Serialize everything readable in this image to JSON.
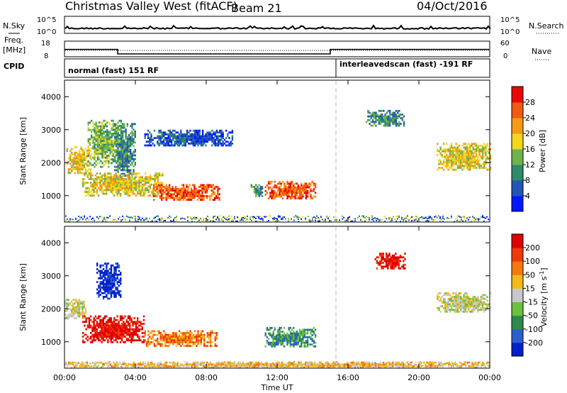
{
  "header": {
    "station": "Christmas Valley West (fitACF)",
    "beam": "Beam 21",
    "date": "04/Oct/2016"
  },
  "status_panels": {
    "nsky_label": "N.Sky",
    "nsearch_label": "N.Search",
    "noise_ticks_left": [
      "10^5",
      "10^0"
    ],
    "noise_ticks_right": [
      "10^5",
      "10^0"
    ],
    "freq_label_1": "Freq.",
    "freq_label_2": "[MHz]",
    "freq_ticks": [
      "18",
      "8"
    ],
    "nave_label": "Nave",
    "nave_ticks": [
      "60",
      "0"
    ],
    "cpid_label": "CPID",
    "cpid_segments": [
      {
        "label": "normal (fast) 151 RF",
        "start_hour": 0
      },
      {
        "label": "interleavedscan (fast) -191 RF",
        "start_hour": 15
      }
    ],
    "freq_steps": [
      {
        "hour": 0,
        "mhz": 14.5
      },
      {
        "hour": 3,
        "mhz": 10.5
      },
      {
        "hour": 15,
        "mhz": 14.5
      },
      {
        "hour": 24,
        "mhz": 14.5
      }
    ]
  },
  "chart_data": [
    {
      "type": "heatmap",
      "name": "power",
      "ylabel": "Slant Range [km]",
      "xlabel": "Time UT",
      "x_ticks": [
        "00:00",
        "04:00",
        "08:00",
        "12:00",
        "16:00",
        "20:00",
        "00:00"
      ],
      "y_ticks": [
        "1000",
        "2000",
        "3000",
        "4000"
      ],
      "xlim": [
        0,
        24
      ],
      "ylim": [
        200,
        4500
      ],
      "colorbar": {
        "label": "Power [dB]",
        "ticks": [
          "4",
          "8",
          "12",
          "16",
          "20",
          "24",
          "28"
        ],
        "colors": [
          "#0018ff",
          "#2255b8",
          "#2f8a6a",
          "#6fb44a",
          "#f2d61e",
          "#f59a15",
          "#f25a10",
          "#e80808"
        ]
      },
      "regions": [
        {
          "t0": 0.1,
          "t1": 1.5,
          "r0": 1700,
          "r1": 2500,
          "level": 4
        },
        {
          "t0": 1.3,
          "t1": 3.2,
          "r0": 1900,
          "r1": 3300,
          "level": 3
        },
        {
          "t0": 2.8,
          "t1": 4.0,
          "r0": 1500,
          "r1": 3200,
          "level": 2
        },
        {
          "t0": 1.0,
          "t1": 5.5,
          "r0": 1000,
          "r1": 1700,
          "level": 4
        },
        {
          "t0": 5.0,
          "t1": 8.7,
          "r0": 850,
          "r1": 1350,
          "level": 6
        },
        {
          "t0": 4.5,
          "t1": 9.5,
          "r0": 2500,
          "r1": 3000,
          "level": 1
        },
        {
          "t0": 10.5,
          "t1": 11.2,
          "r0": 1000,
          "r1": 1350,
          "level": 2
        },
        {
          "t0": 11.3,
          "t1": 14.2,
          "r0": 900,
          "r1": 1450,
          "level": 6
        },
        {
          "t0": 17.0,
          "t1": 19.2,
          "r0": 3100,
          "r1": 3600,
          "level": 2
        },
        {
          "t0": 21.0,
          "t1": 24.0,
          "r0": 1800,
          "r1": 2600,
          "level": 4
        }
      ]
    },
    {
      "type": "heatmap",
      "name": "velocity",
      "ylabel": "Slant Range [km]",
      "xlabel": "Time UT",
      "x_ticks": [
        "00:00",
        "04:00",
        "08:00",
        "12:00",
        "16:00",
        "20:00",
        "00:00"
      ],
      "y_ticks": [
        "1000",
        "2000",
        "3000",
        "4000"
      ],
      "xlim": [
        0,
        24
      ],
      "ylim": [
        200,
        4500
      ],
      "colorbar": {
        "label": "Velocity [m s^-1]",
        "ticks": [
          "200",
          "100",
          "50",
          "15",
          "-15",
          "-50",
          "-100",
          "-200"
        ],
        "colors": [
          "#0020c8",
          "#2a5fd0",
          "#2e8a4a",
          "#6cc040",
          "#c8c8c8",
          "#f4b81a",
          "#f47a10",
          "#ee3a08",
          "#e00000"
        ]
      },
      "regions": [
        {
          "t0": 0.0,
          "t1": 1.2,
          "r0": 1700,
          "r1": 2300,
          "level": 4
        },
        {
          "t0": 1.0,
          "t1": 4.5,
          "r0": 1000,
          "r1": 1800,
          "level": 8
        },
        {
          "t0": 1.8,
          "t1": 3.2,
          "r0": 2300,
          "r1": 3400,
          "level": 0
        },
        {
          "t0": 4.5,
          "t1": 8.6,
          "r0": 850,
          "r1": 1350,
          "level": 6
        },
        {
          "t0": 11.3,
          "t1": 14.2,
          "r0": 850,
          "r1": 1450,
          "level": 2
        },
        {
          "t0": 17.5,
          "t1": 19.2,
          "r0": 3200,
          "r1": 3700,
          "level": 8
        },
        {
          "t0": 21.0,
          "t1": 24.0,
          "r0": 1900,
          "r1": 2500,
          "level": 4
        },
        {
          "t0": 0.0,
          "t1": 24.0,
          "r0": 250,
          "r1": 400,
          "level": 5
        }
      ]
    }
  ]
}
